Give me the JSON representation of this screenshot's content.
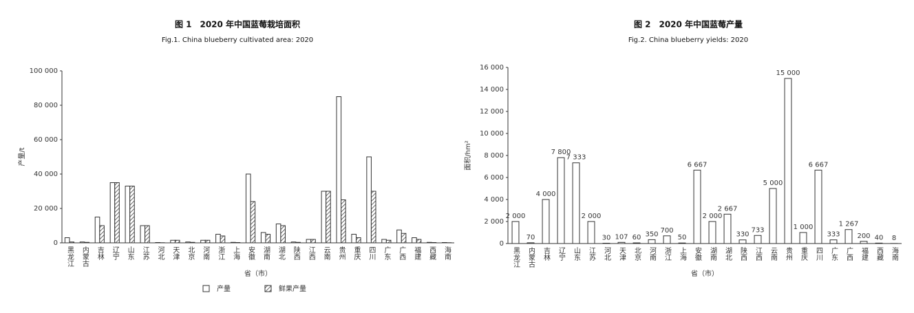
{
  "chart_data": [
    {
      "type": "bar",
      "title": "图 1　2020 年中国蓝莓栽培面积",
      "subtitle": "Fig.1. China blueberry cultivated area: 2020",
      "x_label": "省（市）",
      "y_label": "产量/t",
      "categories": [
        "黑龙江",
        "内蒙古",
        "吉林",
        "辽宁",
        "山东",
        "江苏",
        "河北",
        "天津",
        "北京",
        "河南",
        "浙江",
        "上海",
        "安徽",
        "湖南",
        "湖北",
        "陕西",
        "江西",
        "云南",
        "贵州",
        "重庆",
        "四川",
        "广东",
        "广西",
        "福建",
        "西藏",
        "海南"
      ],
      "series": [
        {
          "name": "产量",
          "color": "#333333",
          "hatch": false,
          "values": [
            3000,
            500,
            15000,
            35000,
            33000,
            10000,
            200,
            1500,
            500,
            1500,
            5000,
            300,
            40000,
            6000,
            11000,
            500,
            2000,
            30000,
            85000,
            5000,
            50000,
            2000,
            7500,
            3000,
            300,
            200
          ]
        },
        {
          "name": "鲜果产量",
          "color": "#333333",
          "hatch": true,
          "values": [
            500,
            300,
            10000,
            35000,
            33000,
            10000,
            100,
            1500,
            300,
            1500,
            4000,
            200,
            24000,
            5000,
            10000,
            300,
            2000,
            30000,
            25000,
            3000,
            30000,
            1500,
            5500,
            2000,
            200,
            100
          ]
        }
      ],
      "ylim": [
        0,
        100000
      ],
      "yticks": [
        0,
        {
          "value": 20000,
          "label": "20 000"
        },
        {
          "value": 40000,
          "label": "40 000"
        },
        {
          "value": 60000,
          "label": "60 000"
        },
        {
          "value": 80000,
          "label": "80 000"
        },
        {
          "value": 100000,
          "label": "100 000"
        }
      ],
      "legend": "bottom"
    },
    {
      "type": "bar",
      "title": "图 2　2020 年中国蓝莓产量",
      "subtitle": "Fig.2. China blueberry yields: 2020",
      "x_label": "省（市）",
      "y_label": "面积/hm²",
      "categories": [
        "黑龙江",
        "内蒙古",
        "吉林",
        "辽宁",
        "山东",
        "江苏",
        "河北",
        "天津",
        "北京",
        "河南",
        "浙江",
        "上海",
        "安徽",
        "湖南",
        "湖北",
        "陕西",
        "江西",
        "云南",
        "贵州",
        "重庆",
        "四川",
        "广东",
        "广西",
        "福建",
        "西藏",
        "海南"
      ],
      "series": [
        {
          "color": "#333333",
          "hatch": false,
          "values": [
            2000,
            70,
            4000,
            7800,
            7333,
            2000,
            30,
            107,
            60,
            350,
            700,
            50,
            6667,
            2000,
            2667,
            330,
            733,
            5000,
            15000,
            1000,
            6667,
            333,
            1267,
            200,
            40,
            8
          ],
          "value_labels": [
            "2 000",
            "70",
            "4 000",
            "7 800",
            "7 333",
            "2 000",
            "30",
            "107",
            "60",
            "350",
            "700",
            "50",
            "6 667",
            "2 000",
            "2 667",
            "330",
            "733",
            "5 000",
            "15 000",
            "1 000",
            "6 667",
            "333",
            "1 267",
            "200",
            "40",
            "8"
          ]
        }
      ],
      "ylim": [
        0,
        16000
      ],
      "yticks": [
        0,
        {
          "value": 2000,
          "label": "2 000"
        },
        {
          "value": 4000,
          "label": "4 000"
        },
        {
          "value": 6000,
          "label": "6 000"
        },
        {
          "value": 8000,
          "label": "8 000"
        },
        {
          "value": 10000,
          "label": "10 000"
        },
        {
          "value": 12000,
          "label": "12 000"
        },
        {
          "value": 14000,
          "label": "14 000"
        },
        {
          "value": 16000,
          "label": "16 000"
        }
      ]
    }
  ]
}
